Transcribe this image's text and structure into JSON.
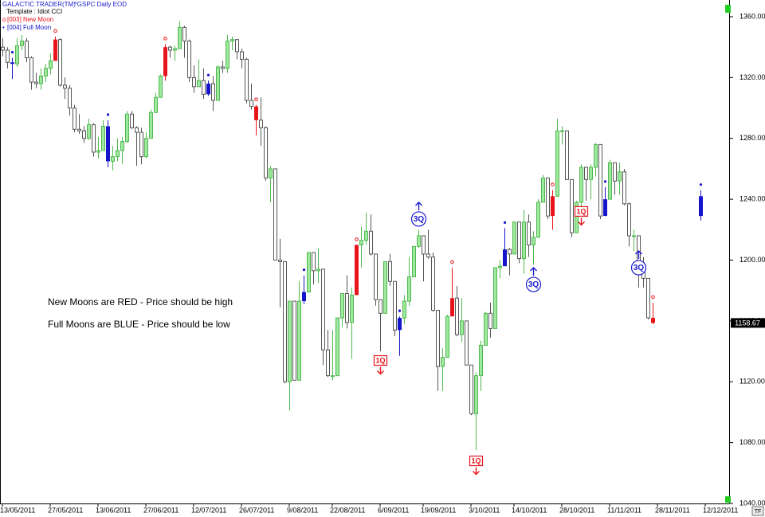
{
  "chart_data": {
    "type": "candlestick",
    "title": "GALACTIC TRADER(TM)",
    "subtitle": "^GSPC Daily EOD",
    "template": "Template : Idiot CCI",
    "series": [
      {
        "name": "[003] New Moon",
        "symbol": "o",
        "color": "#e8141c",
        "indices": [
          11,
          34,
          53,
          74,
          94,
          115,
          136
        ]
      },
      {
        "name": "[004] Full Moon",
        "symbol": "•",
        "color": "#1414c8",
        "indices": [
          2,
          22,
          43,
          63,
          83,
          105,
          126,
          146
        ]
      }
    ],
    "notes": [
      "New Moons are RED - Price should be high",
      "Full Moons are BLUE - Price should be low"
    ],
    "up_color": "#9fe89f",
    "up_stroke": "#4fb84f",
    "down_color": "#ffffff",
    "down_stroke": "#555555",
    "last_price": 1158.67,
    "ylim": [
      1040,
      1371
    ],
    "yticks": [
      {
        "value": 1040,
        "label": "1040.00"
      },
      {
        "value": 1080,
        "label": "1080.00"
      },
      {
        "value": 1120,
        "label": "1120.00"
      },
      {
        "value": 1160,
        "label": "1160.00"
      },
      {
        "value": 1200,
        "label": "1200.00"
      },
      {
        "value": 1240,
        "label": "1240.00"
      },
      {
        "value": 1280,
        "label": "1280.00"
      },
      {
        "value": 1320,
        "label": "1320.00"
      },
      {
        "value": 1360,
        "label": "1360.00"
      }
    ],
    "categories": [
      "13/05/2011",
      null,
      null,
      null,
      null,
      null,
      null,
      null,
      null,
      null,
      "27/05/2011",
      null,
      null,
      null,
      null,
      null,
      null,
      null,
      null,
      null,
      "13/06/2011",
      null,
      null,
      null,
      null,
      null,
      null,
      null,
      null,
      null,
      "27/06/2011",
      null,
      null,
      null,
      null,
      null,
      null,
      null,
      null,
      null,
      "12/07/2011",
      null,
      null,
      null,
      null,
      null,
      null,
      null,
      null,
      null,
      "26/07/2011",
      null,
      null,
      null,
      null,
      null,
      null,
      null,
      null,
      null,
      "9/08/2011",
      null,
      null,
      null,
      null,
      null,
      null,
      null,
      null,
      "22/08/2011",
      null,
      null,
      null,
      null,
      null,
      null,
      null,
      null,
      null,
      "6/09/2011",
      null,
      null,
      null,
      null,
      null,
      null,
      null,
      null,
      "19/09/2011",
      null,
      null,
      null,
      null,
      null,
      null,
      null,
      null,
      null,
      "3/10/2011",
      null,
      null,
      null,
      null,
      null,
      null,
      null,
      null,
      "14/10/2011",
      null,
      null,
      null,
      null,
      null,
      null,
      null,
      null,
      null,
      "28/10/2011",
      null,
      null,
      null,
      null,
      null,
      null,
      null,
      null,
      null,
      "11/11/2011",
      null,
      null,
      null,
      null,
      null,
      null,
      null,
      null,
      null,
      "28/11/2011",
      null,
      null,
      null,
      null,
      null,
      null,
      null,
      null,
      null,
      "12/12/2011",
      null,
      null,
      null,
      null
    ],
    "open": [
      1340,
      1338,
      1330,
      1329,
      1341,
      1344,
      1333,
      1317,
      1316,
      1321,
      1326,
      1331,
      1345,
      1315,
      1313,
      1300,
      1286,
      1285,
      1280,
      1289,
      1271,
      1272,
      1288,
      1265,
      1268,
      1272,
      1278,
      1296,
      1287,
      1284,
      1268,
      1280,
      1297,
      1307,
      1321,
      1340,
      1338,
      1339,
      1353,
      1344,
      1320,
      1314,
      1318,
      1309,
      1316,
      1305,
      1327,
      1326,
      1344,
      1345,
      1337,
      1332,
      1305,
      1301,
      1292,
      1287,
      1254,
      1260,
      1200,
      1199,
      1120,
      1173,
      1121,
      1173,
      1179,
      1205,
      1193,
      1194,
      1141,
      1124,
      1124,
      1162,
      1178,
      1159,
      1177,
      1210,
      1213,
      1219,
      1204,
      1174,
      1165,
      1199,
      1186,
      1154,
      1162,
      1173,
      1189,
      1209,
      1216,
      1204,
      1202,
      1167,
      1130,
      1136,
      1163,
      1175,
      1151,
      1160,
      1131,
      1099,
      1124,
      1144,
      1165,
      1155,
      1195,
      1196,
      1207,
      1204,
      1225,
      1201,
      1225,
      1210,
      1215,
      1238,
      1254,
      1229,
      1242,
      1285,
      1285,
      1253,
      1218,
      1238,
      1261,
      1253,
      1261,
      1276,
      1229,
      1240,
      1264,
      1252,
      1258,
      1237,
      1216,
      1216,
      1193,
      1188,
      1162,
      null,
      null,
      null,
      null,
      null,
      null,
      null,
      null,
      null,
      1242,
      null,
      null,
      null,
      null,
      null
    ],
    "high": [
      1346,
      1340,
      1333,
      1346,
      1348,
      1346,
      1334,
      1323,
      1326,
      1329,
      1336,
      1347,
      1346,
      1320,
      1315,
      1302,
      1296,
      1288,
      1293,
      1290,
      1281,
      1292,
      1292,
      1275,
      1280,
      1281,
      1298,
      1298,
      1288,
      1287,
      1284,
      1299,
      1310,
      1322,
      1342,
      1341,
      1341,
      1357,
      1354,
      1345,
      1328,
      1332,
      1326,
      1318,
      1321,
      1328,
      1331,
      1348,
      1347,
      1345,
      1339,
      1333,
      1316,
      1302,
      1307,
      1288,
      1262,
      1260,
      1214,
      1199,
      1173,
      1173,
      1186,
      1190,
      1205,
      1205,
      1208,
      1194,
      1154,
      1154,
      1162,
      1178,
      1190,
      1182,
      1210,
      1222,
      1231,
      1230,
      1204,
      1174,
      1199,
      1204,
      1186,
      1163,
      1177,
      1202,
      1209,
      1220,
      1216,
      1220,
      1205,
      1167,
      1142,
      1164,
      1195,
      1183,
      1175,
      1160,
      1131,
      1126,
      1147,
      1166,
      1172,
      1195,
      1200,
      1221,
      1208,
      1225,
      1225,
      1233,
      1230,
      1219,
      1240,
      1256,
      1254,
      1246,
      1293,
      1288,
      1285,
      1253,
      1239,
      1263,
      1261,
      1263,
      1277,
      1276,
      1248,
      1266,
      1264,
      1264,
      1260,
      1238,
      1220,
      1216,
      1202,
      1188,
      1172,
      null,
      null,
      null,
      null,
      null,
      null,
      null,
      null,
      null,
      1246,
      null,
      null,
      null,
      null,
      null
    ],
    "low": [
      1334,
      1326,
      1319,
      1327,
      1338,
      1330,
      1312,
      1313,
      1312,
      1317,
      1322,
      1331,
      1314,
      1306,
      1295,
      1284,
      1283,
      1277,
      1279,
      1268,
      1267,
      1272,
      1261,
      1259,
      1265,
      1263,
      1277,
      1286,
      1262,
      1263,
      1267,
      1280,
      1297,
      1307,
      1318,
      1333,
      1331,
      1339,
      1333,
      1317,
      1310,
      1314,
      1306,
      1308,
      1298,
      1305,
      1323,
      1323,
      1338,
      1332,
      1326,
      1303,
      1299,
      1282,
      1275,
      1252,
      1238,
      1200,
      1169,
      1119,
      1101,
      1121,
      1121,
      1171,
      1179,
      1184,
      1185,
      1131,
      1123,
      1121,
      1124,
      1156,
      1155,
      1135,
      1177,
      1195,
      1210,
      1203,
      1170,
      1140,
      1165,
      1183,
      1150,
      1137,
      1158,
      1170,
      1189,
      1208,
      1186,
      1201,
      1166,
      1114,
      1114,
      1136,
      1163,
      1150,
      1146,
      1131,
      1098,
      1075,
      1114,
      1144,
      1149,
      1155,
      1188,
      1196,
      1190,
      1204,
      1198,
      1191,
      1202,
      1197,
      1215,
      1238,
      1227,
      1220,
      1242,
      1276,
      1253,
      1215,
      1218,
      1234,
      1239,
      1240,
      1255,
      1227,
      1229,
      1240,
      1243,
      1243,
      1236,
      1209,
      1206,
      1182,
      1182,
      1161,
      1158,
      null,
      null,
      null,
      null,
      null,
      null,
      null,
      null,
      null,
      1226,
      null,
      null,
      null,
      null,
      null
    ],
    "close": [
      1338,
      1330,
      1329,
      1341,
      1344,
      1333,
      1317,
      1316,
      1321,
      1326,
      1331,
      1345,
      1315,
      1313,
      1300,
      1286,
      1285,
      1280,
      1289,
      1271,
      1272,
      1288,
      1265,
      1268,
      1272,
      1278,
      1296,
      1287,
      1284,
      1268,
      1280,
      1297,
      1307,
      1321,
      1340,
      1338,
      1339,
      1353,
      1344,
      1320,
      1314,
      1318,
      1309,
      1316,
      1305,
      1327,
      1326,
      1344,
      1345,
      1337,
      1332,
      1305,
      1301,
      1292,
      1287,
      1254,
      1260,
      1200,
      1199,
      1120,
      1173,
      1121,
      1173,
      1179,
      1205,
      1193,
      1194,
      1141,
      1124,
      1124,
      1162,
      1178,
      1159,
      1177,
      1210,
      1213,
      1219,
      1204,
      1174,
      1165,
      1199,
      1186,
      1154,
      1162,
      1173,
      1189,
      1209,
      1216,
      1204,
      1202,
      1167,
      1130,
      1136,
      1163,
      1175,
      1151,
      1160,
      1131,
      1099,
      1124,
      1144,
      1165,
      1155,
      1195,
      1196,
      1207,
      1204,
      1225,
      1201,
      1225,
      1210,
      1215,
      1238,
      1254,
      1229,
      1242,
      1285,
      1285,
      1253,
      1218,
      1238,
      1261,
      1253,
      1261,
      1276,
      1229,
      1240,
      1264,
      1252,
      1258,
      1237,
      1216,
      1216,
      1193,
      1188,
      1162,
      1158.67,
      null,
      null,
      null,
      null,
      null,
      null,
      null,
      null,
      null,
      1229,
      null,
      null,
      null,
      null,
      null
    ],
    "annotations": [
      {
        "label": "3Q",
        "index": 87,
        "value": 1227,
        "direction": "up",
        "color": "#1a1ad0"
      },
      {
        "label": "3Q",
        "index": 111,
        "value": 1184,
        "direction": "up",
        "color": "#1a1ad0"
      },
      {
        "label": "3Q",
        "index": 133,
        "value": 1195,
        "direction": "up",
        "color": "#1a1ad0"
      },
      {
        "label": "1Q",
        "index": 79,
        "value": 1134,
        "direction": "down",
        "color": "#e8141c"
      },
      {
        "label": "1Q",
        "index": 99,
        "value": 1068,
        "direction": "down",
        "color": "#e8141c"
      },
      {
        "label": "1Q",
        "index": 121,
        "value": 1232,
        "direction": "down",
        "color": "#e8141c"
      }
    ]
  }
}
